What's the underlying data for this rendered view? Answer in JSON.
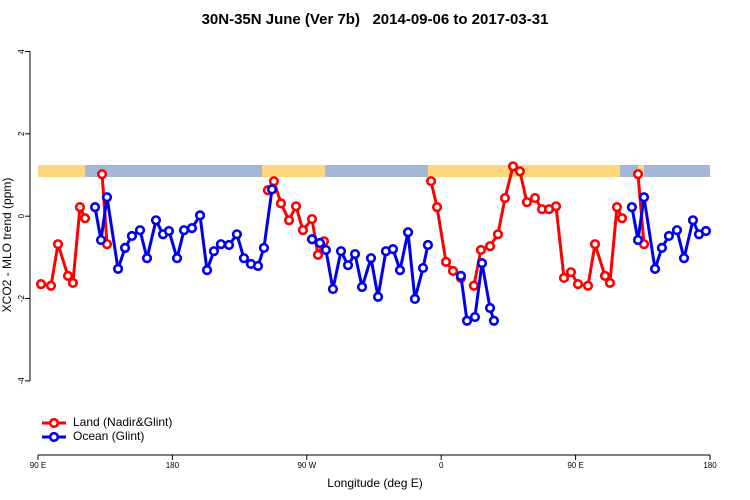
{
  "chart_data": {
    "type": "line",
    "title": "30N-35N June (Ver 7b)   2014-09-06 to 2017-03-31",
    "x_label": "Longitude (deg E)",
    "y_label": "XCO2 - MLO trend (ppm)",
    "xlim": [
      90,
      540
    ],
    "xticks": [
      {
        "value": 90,
        "label": "90 E"
      },
      {
        "value": 180,
        "label": "180"
      },
      {
        "value": 270,
        "label": "90 W"
      },
      {
        "value": 360,
        "label": "0"
      },
      {
        "value": 450,
        "label": "90 E"
      },
      {
        "value": 540,
        "label": "180"
      }
    ],
    "ylim": [
      -5.8,
      4.4
    ],
    "yticks": [
      -4,
      -2,
      0,
      2,
      4
    ],
    "legend": "bottomleft",
    "series": [
      {
        "name": "Land (Nadir&Glint)",
        "color": "#ff0000",
        "x": [
          92.0,
          98.7,
          103.4,
          110.1,
          113.4,
          118.1,
          121.5,
          null,
          132.9,
          136.2,
          null,
          244.0,
          248.0,
          252.7,
          258.1,
          262.8,
          267.4,
          273.5,
          277.5,
          281.5,
          null,
          353.2,
          357.2,
          363.2,
          367.9,
          373.2,
          null,
          381.9,
          386.6,
          392.7,
          398.0,
          402.7,
          408.1,
          412.7,
          417.4,
          422.8,
          427.5,
          432.2,
          436.9,
          442.2,
          446.9,
          451.6,
          458.3,
          463.0,
          469.7,
          473.0,
          477.7,
          481.1,
          null,
          491.8,
          495.8
        ],
        "values": [
          -1.65,
          -1.69,
          -0.68,
          -1.45,
          -1.62,
          0.22,
          -0.05,
          null,
          1.02,
          -0.68,
          null,
          0.63,
          0.85,
          0.31,
          -0.1,
          0.24,
          -0.34,
          -0.07,
          -0.94,
          -0.61,
          null,
          0.85,
          0.22,
          -1.11,
          -1.33,
          -1.5,
          null,
          -1.69,
          -0.82,
          -0.73,
          -0.44,
          0.44,
          1.21,
          1.09,
          0.34,
          0.44,
          0.17,
          0.17,
          0.24,
          -1.5,
          -1.36,
          -1.65,
          -1.69,
          -0.68,
          -1.45,
          -1.62,
          0.22,
          -0.05,
          null,
          1.02,
          -0.68
        ]
      },
      {
        "name": "Ocean (Glint)",
        "color": "#0000ee",
        "x": [
          128.2,
          132.2,
          136.2,
          143.6,
          148.3,
          152.9,
          158.3,
          163.0,
          169.0,
          173.7,
          177.7,
          183.1,
          187.8,
          193.1,
          198.5,
          203.2,
          207.8,
          212.5,
          217.9,
          223.2,
          227.9,
          232.6,
          237.3,
          241.3,
          246.7,
          null,
          273.5,
          278.8,
          282.8,
          287.5,
          292.9,
          297.6,
          302.3,
          307.0,
          313.0,
          317.7,
          323.0,
          327.7,
          332.4,
          337.8,
          342.4,
          347.8,
          351.1,
          null,
          373.2,
          377.3,
          382.6,
          387.3,
          392.7,
          395.3,
          null,
          487.7,
          491.8,
          495.8,
          503.2,
          507.8,
          512.5,
          517.9,
          522.6,
          528.6,
          532.6,
          537.3
        ],
        "values": [
          0.22,
          -0.58,
          0.46,
          -1.28,
          -0.77,
          -0.48,
          -0.34,
          -1.02,
          -0.1,
          -0.44,
          -0.36,
          -1.02,
          -0.34,
          -0.29,
          0.02,
          -1.31,
          -0.85,
          -0.68,
          -0.7,
          -0.44,
          -1.02,
          -1.16,
          -1.21,
          -0.77,
          0.65,
          null,
          -0.56,
          -0.65,
          -0.82,
          -1.77,
          -0.85,
          -1.19,
          -0.92,
          -1.72,
          -1.02,
          -1.96,
          -0.85,
          -0.8,
          -1.31,
          -0.39,
          -2.01,
          -1.26,
          -0.7,
          null,
          -1.45,
          -2.54,
          -2.45,
          -1.14,
          -2.23,
          -2.54,
          null,
          0.22,
          -0.58,
          0.46,
          -1.28,
          -0.77,
          -0.48,
          -0.34,
          -1.02,
          -0.1,
          -0.44,
          -0.36
        ]
      }
    ]
  }
}
